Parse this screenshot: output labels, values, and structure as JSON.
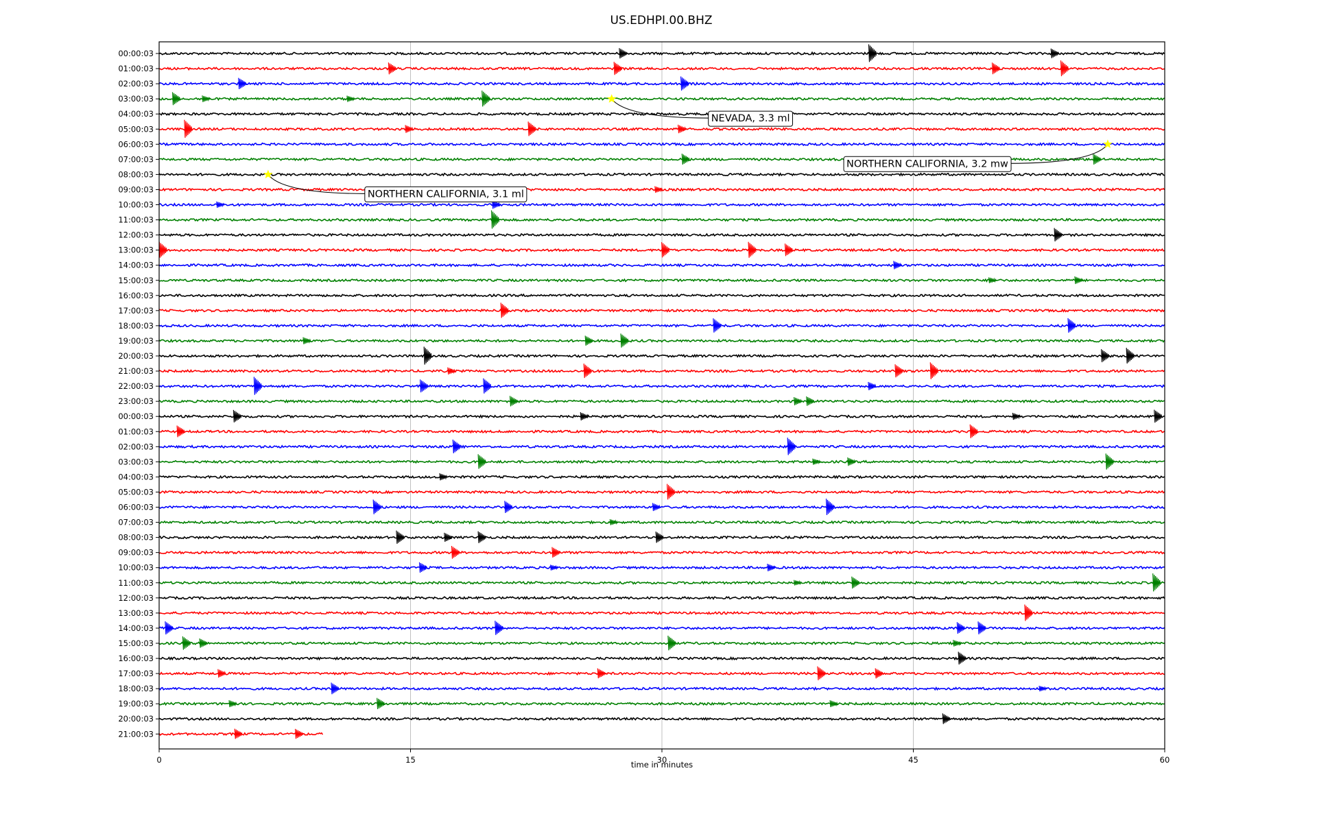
{
  "chart_data": {
    "type": "line",
    "title": "US.EDHPI.00.BHZ",
    "xlabel": "time in minutes",
    "ylabel": "",
    "xlim": [
      0,
      60
    ],
    "xticks": [
      0,
      15,
      30,
      45,
      60
    ],
    "grid": "vertical",
    "trace_colors": [
      "#000000",
      "#ff0000",
      "#0000ff",
      "#008000"
    ],
    "star_color": "#ffff00",
    "last_trace_end_minutes": 9.8,
    "y_labels": [
      "00:00:03",
      "01:00:03",
      "02:00:03",
      "03:00:03",
      "04:00:03",
      "05:00:03",
      "06:00:03",
      "07:00:03",
      "08:00:03",
      "09:00:03",
      "10:00:03",
      "11:00:03",
      "12:00:03",
      "13:00:03",
      "14:00:03",
      "15:00:03",
      "16:00:03",
      "17:00:03",
      "18:00:03",
      "19:00:03",
      "20:00:03",
      "21:00:03",
      "22:00:03",
      "23:00:03",
      "00:00:03",
      "01:00:03",
      "02:00:03",
      "03:00:03",
      "04:00:03",
      "05:00:03",
      "06:00:03",
      "07:00:03",
      "08:00:03",
      "09:00:03",
      "10:00:03",
      "11:00:03",
      "12:00:03",
      "13:00:03",
      "14:00:03",
      "15:00:03",
      "16:00:03",
      "17:00:03",
      "18:00:03",
      "19:00:03",
      "20:00:03",
      "21:00:03"
    ],
    "events": [
      {
        "label": "NEVADA, 3.3 ml",
        "row": 3,
        "minute": 27.0
      },
      {
        "label": "NORTHERN CALIFORNIA, 3.2 mw",
        "row": 6,
        "minute": 56.6
      },
      {
        "label": "NORTHERN CALIFORNIA, 3.1 ml",
        "row": 8,
        "minute": 6.5
      }
    ]
  }
}
